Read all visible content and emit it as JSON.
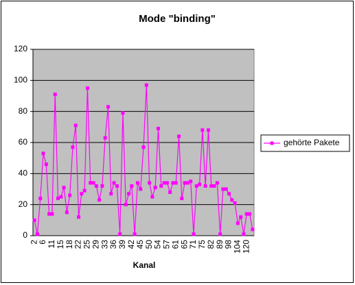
{
  "chart_data": {
    "type": "line",
    "title": "Mode \"binding\"",
    "x_label": "Kanal",
    "categories": [
      "2",
      null,
      null,
      "6",
      null,
      null,
      "11",
      null,
      null,
      "15",
      null,
      null,
      "18",
      null,
      null,
      "22",
      null,
      null,
      "25",
      null,
      null,
      "29",
      null,
      null,
      "33",
      null,
      null,
      "36",
      null,
      null,
      "39",
      null,
      null,
      "42",
      null,
      null,
      "45",
      null,
      null,
      "50",
      null,
      null,
      "54",
      null,
      null,
      "57",
      null,
      null,
      "61",
      null,
      null,
      "65",
      null,
      null,
      "71",
      null,
      null,
      "75",
      null,
      null,
      "82",
      null,
      null,
      "89",
      null,
      null,
      "98",
      null,
      null,
      "104",
      null,
      null,
      "120",
      null,
      null
    ],
    "series": [
      {
        "name": "gehörte Pakete",
        "color": "#ff00ff",
        "values": [
          10,
          1,
          24,
          53,
          46,
          14,
          14,
          91,
          24,
          25,
          31,
          15,
          26,
          57,
          71,
          12,
          27,
          29,
          95,
          34,
          34,
          32,
          23,
          32,
          63,
          83,
          27,
          34,
          32,
          1,
          79,
          20,
          27,
          32,
          1,
          34,
          30,
          57,
          97,
          34,
          25,
          31,
          69,
          32,
          34,
          34,
          28,
          34,
          34,
          64,
          24,
          34,
          34,
          35,
          1,
          32,
          33,
          68,
          32,
          68,
          32,
          32,
          34,
          1,
          30,
          30,
          27,
          23,
          21,
          8,
          12,
          1,
          14,
          14,
          4
        ]
      }
    ],
    "ylim": [
      0,
      120
    ],
    "yticks": [
      0,
      20,
      40,
      60,
      80,
      100,
      120
    ],
    "grid": true,
    "legend": "right"
  }
}
